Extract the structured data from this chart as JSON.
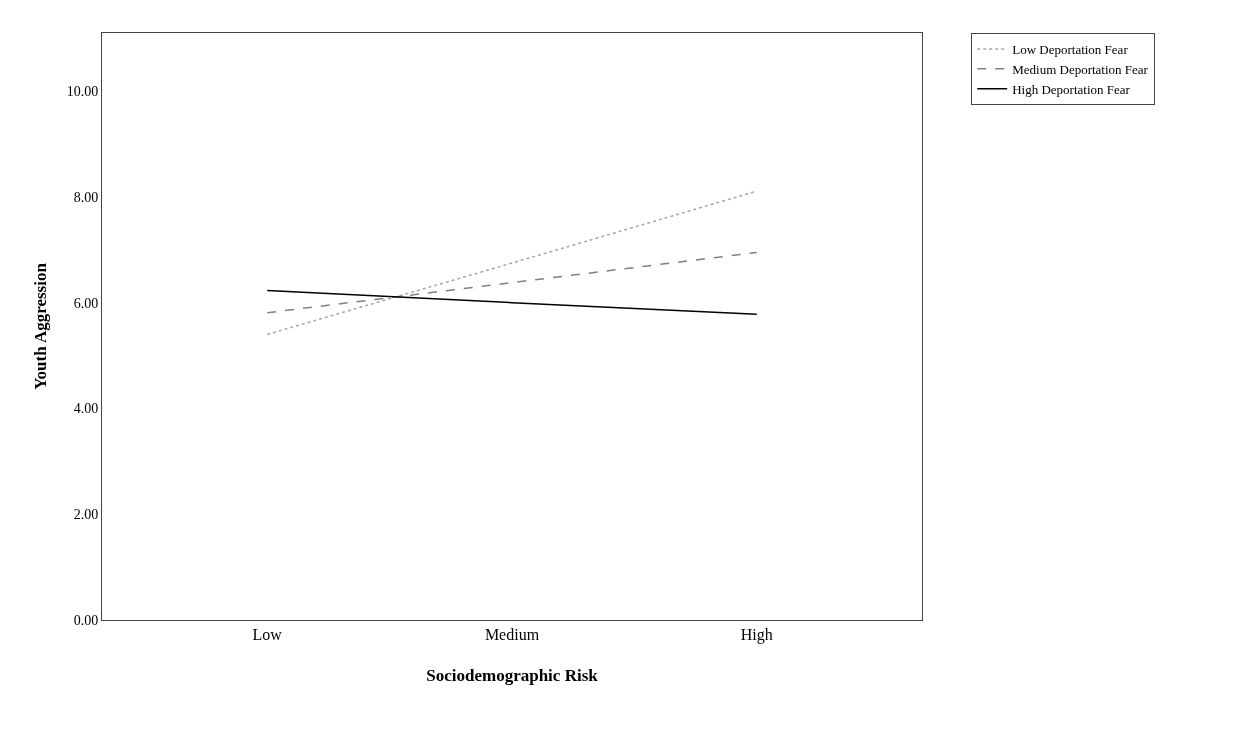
{
  "chart_data": {
    "type": "line",
    "xlabel": "Sociodemographic Risk",
    "ylabel": "Youth Aggression",
    "categories": [
      "Low",
      "Medium",
      "High"
    ],
    "series": [
      {
        "name": "Low Deportation Fear",
        "color": "#a6a6a6",
        "line_style": "dotted",
        "values": [
          5.4,
          6.75,
          8.11
        ]
      },
      {
        "name": "Medium Deportation Fear",
        "color": "#808080",
        "line_style": "dashed",
        "values": [
          5.81,
          6.38,
          6.95
        ]
      },
      {
        "name": "High Deportation Fear",
        "color": "#000000",
        "line_style": "solid",
        "values": [
          6.23,
          6.0,
          5.78
        ]
      }
    ],
    "ylim": [
      0,
      11.1
    ],
    "yticks": [
      {
        "value": 0,
        "label": "0.00"
      },
      {
        "value": 2,
        "label": "2.00"
      },
      {
        "value": 4,
        "label": "4.00"
      },
      {
        "value": 6,
        "label": "6.00"
      },
      {
        "value": 8,
        "label": "8.00"
      },
      {
        "value": 10,
        "label": "10.00"
      }
    ],
    "legend": "top right",
    "marker": "none"
  }
}
